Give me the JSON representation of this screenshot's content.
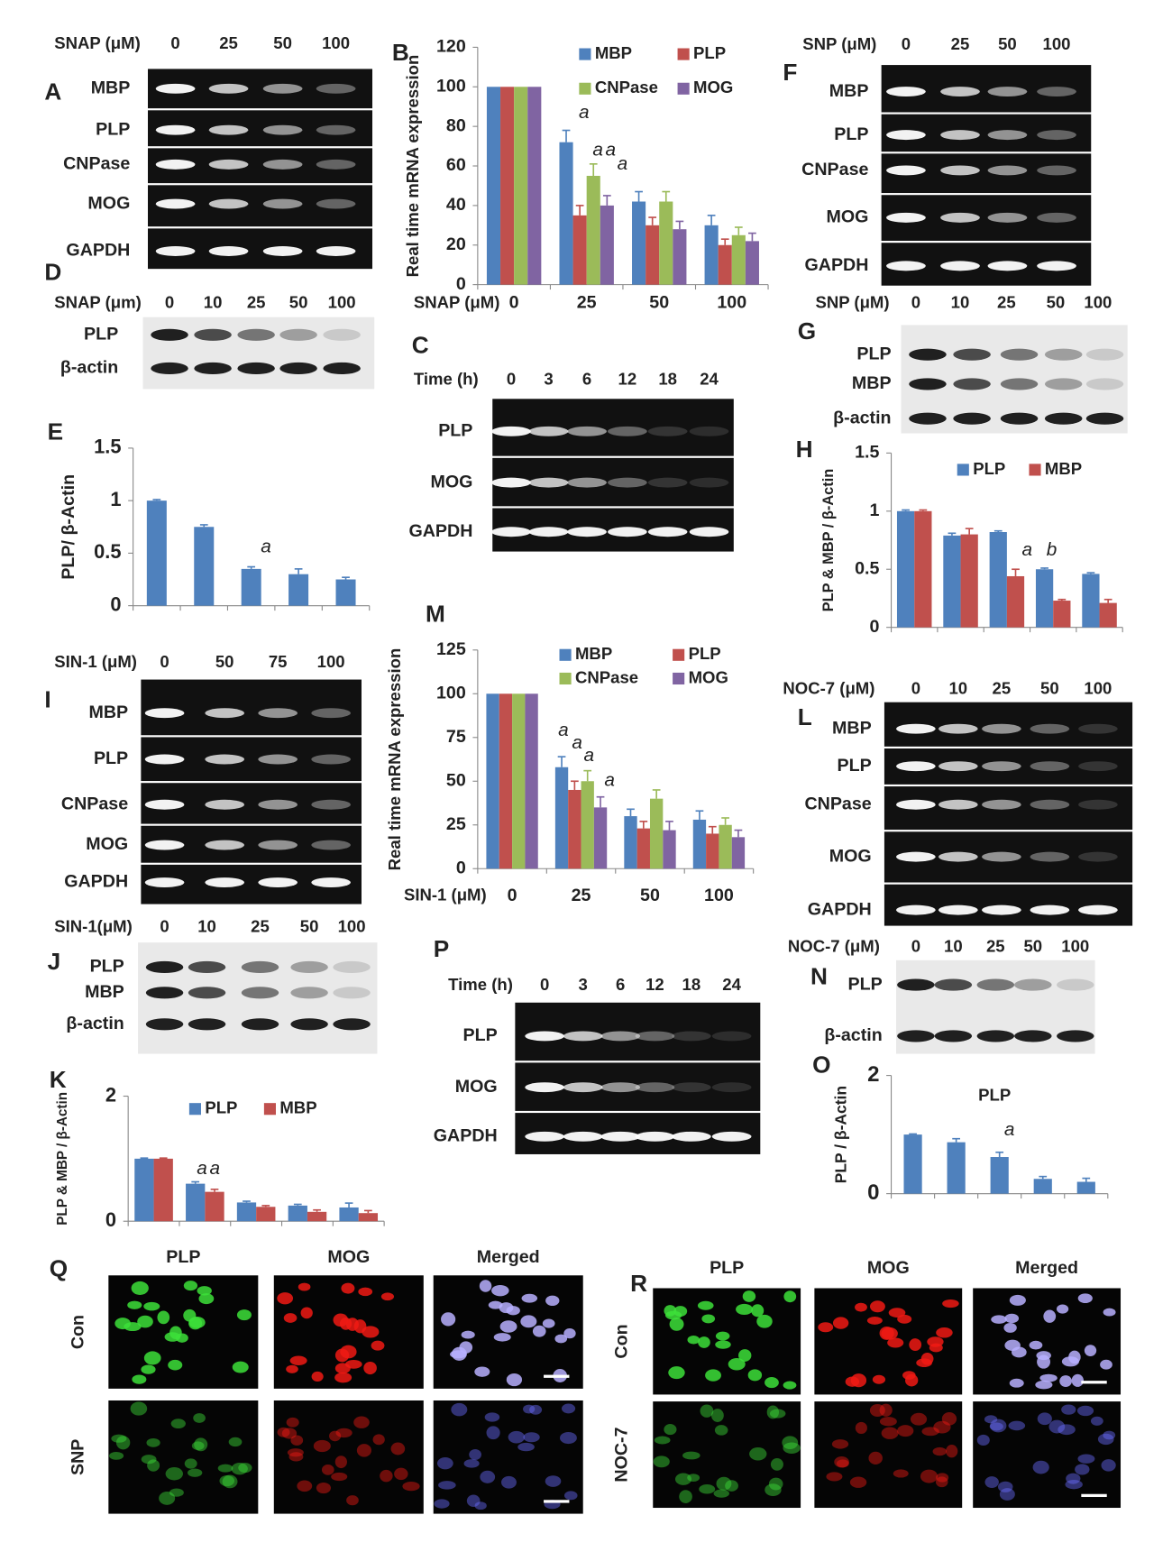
{
  "chart_data": [
    {
      "letter": "B",
      "type": "bar",
      "ylabel": "Real time mRNA expression",
      "xlabel": "SNAP (μM)",
      "categories": [
        "0",
        "25",
        "50",
        "100"
      ],
      "ylim": [
        0,
        120
      ],
      "yticks": [
        0,
        20,
        40,
        60,
        80,
        100,
        120
      ],
      "series": [
        {
          "name": "MBP",
          "color": "#4f81bd",
          "values": [
            100,
            72,
            42,
            30
          ],
          "errors": [
            0,
            6,
            5,
            5
          ]
        },
        {
          "name": "PLP",
          "color": "#c0504d",
          "values": [
            100,
            35,
            30,
            20
          ],
          "errors": [
            0,
            5,
            4,
            3
          ]
        },
        {
          "name": "CNPase",
          "color": "#9bbb59",
          "values": [
            100,
            55,
            42,
            25
          ],
          "errors": [
            0,
            6,
            5,
            4
          ]
        },
        {
          "name": "MOG",
          "color": "#8064a2",
          "values": [
            100,
            40,
            28,
            22
          ],
          "errors": [
            0,
            5,
            4,
            4
          ]
        }
      ],
      "annotations": [
        "a",
        "a",
        "a",
        "a"
      ]
    },
    {
      "letter": "E",
      "type": "bar",
      "ylabel": "PLP/ β-Actin",
      "categories": [
        null,
        null,
        null,
        null,
        null
      ],
      "ylim": [
        0,
        1.5
      ],
      "yticks": [
        0,
        0.5,
        1,
        1.5
      ],
      "values": [
        1,
        0.75,
        0.35,
        0.3,
        0.25
      ],
      "errors": [
        0.01,
        0.02,
        0.02,
        0.05,
        0.02
      ],
      "color": "#4f81bd",
      "annotations": [
        "a"
      ]
    },
    {
      "letter": "H",
      "type": "bar",
      "ylabel": "PLP & MBP / β-Actin",
      "categories": [
        null,
        null,
        null,
        null,
        null
      ],
      "ylim": [
        0,
        1.5
      ],
      "yticks": [
        0,
        0.5,
        1,
        1.5
      ],
      "series": [
        {
          "name": "PLP",
          "color": "#4f81bd",
          "values": [
            1,
            0.79,
            0.82,
            0.5,
            0.46
          ],
          "errors": [
            0.01,
            0.02,
            0.01,
            0.01,
            0.01
          ]
        },
        {
          "name": "MBP",
          "color": "#c0504d",
          "values": [
            1,
            0.8,
            0.44,
            0.23,
            0.21
          ],
          "errors": [
            0.01,
            0.05,
            0.06,
            0.01,
            0.03
          ]
        }
      ],
      "annotations": [
        "a",
        "b"
      ]
    },
    {
      "letter": "M",
      "type": "bar",
      "ylabel": "Real time mRNA expression",
      "xlabel": "SIN-1 (μM)",
      "categories": [
        "0",
        "25",
        "50",
        "100"
      ],
      "ylim": [
        0,
        125
      ],
      "yticks": [
        0,
        25,
        50,
        75,
        100,
        125
      ],
      "series": [
        {
          "name": "MBP",
          "color": "#4f81bd",
          "values": [
            100,
            58,
            30,
            28
          ],
          "errors": [
            0,
            6,
            4,
            5
          ]
        },
        {
          "name": "PLP",
          "color": "#c0504d",
          "values": [
            100,
            45,
            23,
            20
          ],
          "errors": [
            0,
            5,
            4,
            4
          ]
        },
        {
          "name": "CNPase",
          "color": "#9bbb59",
          "values": [
            100,
            50,
            40,
            25
          ],
          "errors": [
            0,
            6,
            5,
            4
          ]
        },
        {
          "name": "MOG",
          "color": "#8064a2",
          "values": [
            100,
            35,
            22,
            18
          ],
          "errors": [
            0,
            6,
            5,
            4
          ]
        }
      ],
      "annotations": [
        "a",
        "a",
        "a",
        "a"
      ]
    },
    {
      "letter": "K",
      "type": "bar",
      "ylabel": "PLP & MBP / β-Actin",
      "categories": [
        null,
        null,
        null,
        null,
        null
      ],
      "ylim": [
        0,
        2
      ],
      "yticks": [
        0,
        2
      ],
      "series": [
        {
          "name": "PLP",
          "color": "#4f81bd",
          "values": [
            1,
            0.6,
            0.3,
            0.25,
            0.22
          ],
          "errors": [
            0.01,
            0.03,
            0.02,
            0.02,
            0.07
          ]
        },
        {
          "name": "MBP",
          "color": "#c0504d",
          "values": [
            1,
            0.47,
            0.23,
            0.15,
            0.13
          ],
          "errors": [
            0.01,
            0.04,
            0.02,
            0.03,
            0.04
          ]
        }
      ],
      "annotations": [
        "a",
        "a"
      ]
    },
    {
      "letter": "O",
      "type": "bar",
      "title": "PLP",
      "ylabel": "PLP / β-Actin",
      "categories": [
        null,
        null,
        null,
        null,
        null
      ],
      "ylim": [
        0,
        2
      ],
      "yticks": [
        0,
        2
      ],
      "values": [
        1,
        0.87,
        0.62,
        0.25,
        0.2
      ],
      "errors": [
        0.01,
        0.06,
        0.08,
        0.04,
        0.06
      ],
      "color": "#4f81bd",
      "annotations": [
        "a"
      ]
    }
  ],
  "blots": [
    {
      "letter": "A",
      "header": "SNAP (μM)",
      "lanes": [
        "0",
        "25",
        "50",
        "100"
      ],
      "rows": [
        "MBP",
        "PLP",
        "CNPase",
        "MOG",
        "GAPDH"
      ]
    },
    {
      "letter": "F",
      "header": "SNP (μM)",
      "lanes": [
        "0",
        "25",
        "50",
        "100"
      ],
      "rows": [
        "MBP",
        "PLP",
        "CNPase",
        "MOG",
        "GAPDH"
      ]
    },
    {
      "letter": "D",
      "header": "SNAP (μm)",
      "lanes": [
        "0",
        "10",
        "25",
        "50",
        "100"
      ],
      "rows": [
        "PLP",
        "β-actin"
      ]
    },
    {
      "letter": "G",
      "header": "SNP (μM)",
      "lanes": [
        "0",
        "10",
        "25",
        "50",
        "100"
      ],
      "rows": [
        "PLP",
        "MBP",
        "β-actin"
      ]
    },
    {
      "letter": "C",
      "header": "Time (h)",
      "lanes": [
        "0",
        "3",
        "6",
        "12",
        "18",
        "24"
      ],
      "rows": [
        "PLP",
        "MOG",
        "GAPDH"
      ]
    },
    {
      "letter": "I",
      "header": "SIN-1 (μM)",
      "lanes": [
        "0",
        "50",
        "75",
        "100"
      ],
      "rows": [
        "MBP",
        "PLP",
        "CNPase",
        "MOG",
        "GAPDH"
      ]
    },
    {
      "letter": "L",
      "header": "NOC-7 (μM)",
      "lanes": [
        "0",
        "10",
        "25",
        "50",
        "100"
      ],
      "rows": [
        "MBP",
        "PLP",
        "CNPase",
        "MOG",
        "GAPDH"
      ]
    },
    {
      "letter": "J",
      "header": "SIN-1(μM)",
      "lanes": [
        "0",
        "10",
        "25",
        "50",
        "100"
      ],
      "rows": [
        "PLP",
        "MBP",
        "β-actin"
      ]
    },
    {
      "letter": "P",
      "header": "Time (h)",
      "lanes": [
        "0",
        "3",
        "6",
        "12",
        "18",
        "24"
      ],
      "rows": [
        "PLP",
        "MOG",
        "GAPDH"
      ]
    },
    {
      "letter": "N",
      "header": "NOC-7 (μM)",
      "lanes": [
        "0",
        "10",
        "25",
        "50",
        "100"
      ],
      "rows": [
        "PLP",
        "β-actin"
      ]
    }
  ],
  "micrographs": [
    {
      "letter": "Q",
      "columns": [
        "PLP",
        "MOG",
        "Merged"
      ],
      "rows": [
        "Con",
        "SNP"
      ]
    },
    {
      "letter": "R",
      "columns": [
        "PLP",
        "MOG",
        "Merged"
      ],
      "rows": [
        "Con",
        "NOC-7"
      ]
    }
  ]
}
